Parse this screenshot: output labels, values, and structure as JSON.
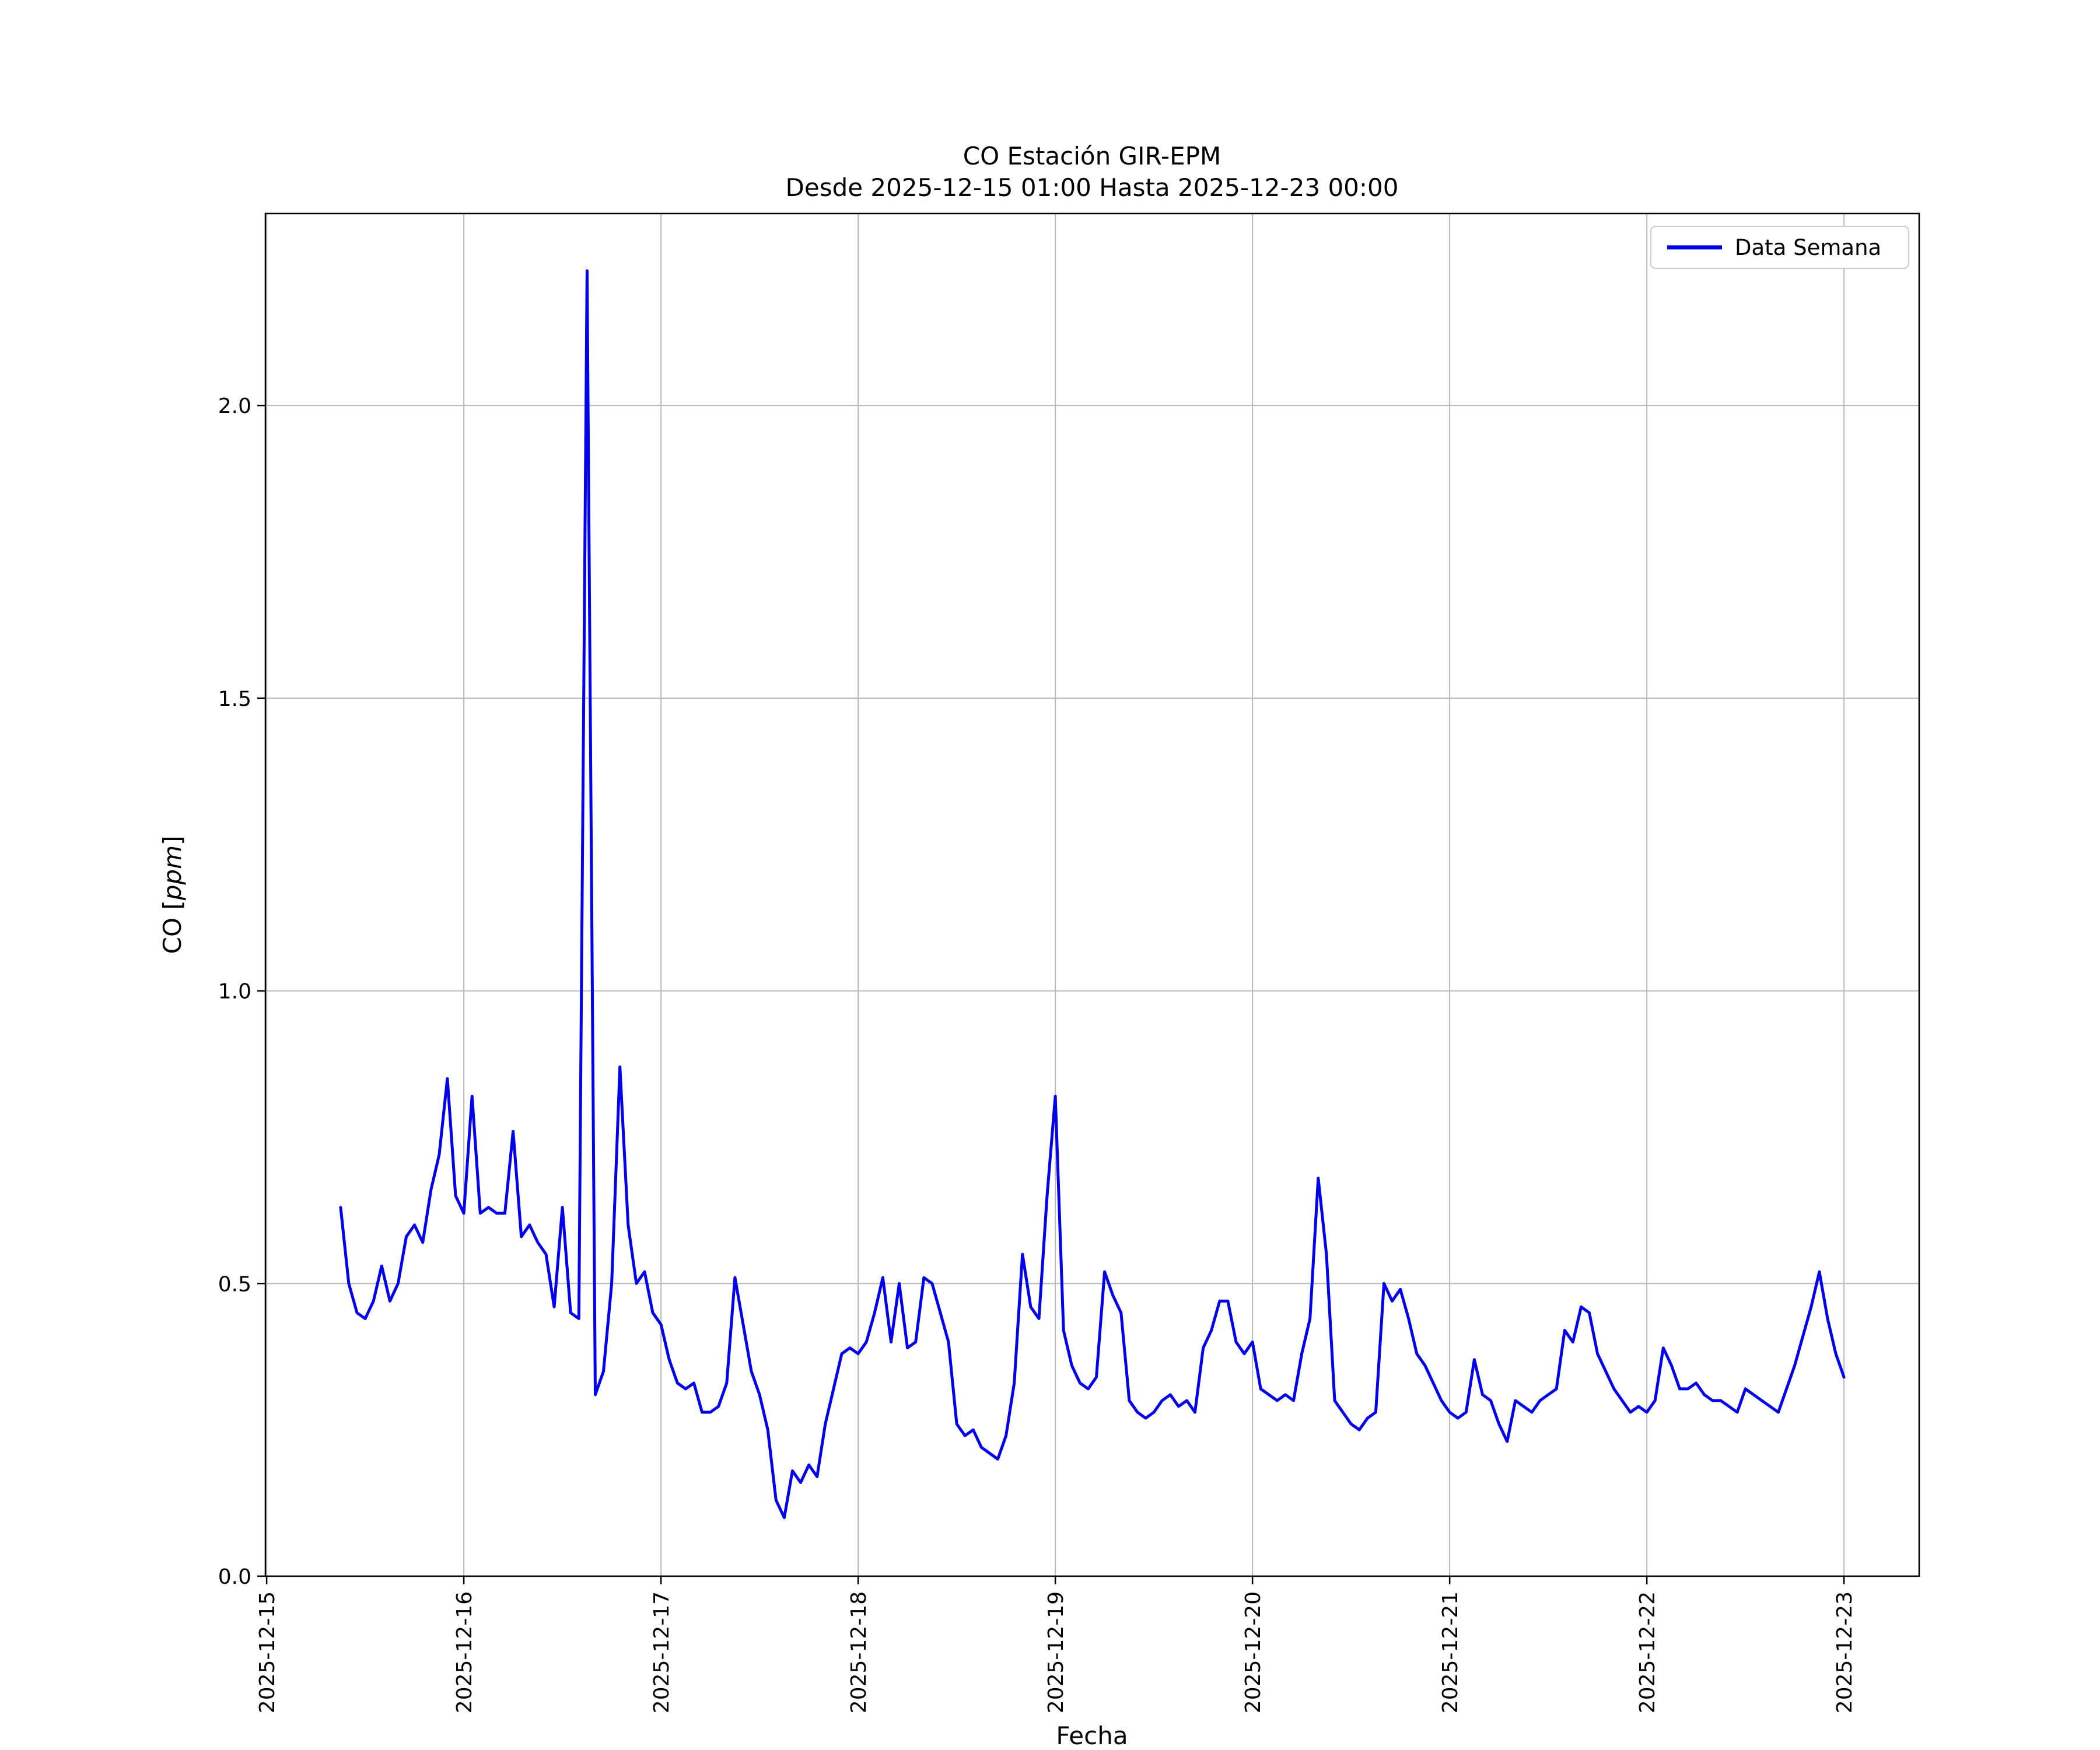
{
  "chart_data": {
    "type": "line",
    "title": "CO Estación GIR-EPM",
    "subtitle": "Desde 2025-12-15 01:00 Hasta 2025-12-23 00:00",
    "xlabel": "Fecha",
    "ylabel": "CO [ppm]",
    "ylabel_parts": [
      "CO [",
      "ppm",
      "]"
    ],
    "ylim": [
      0,
      2.328
    ],
    "yticks": [
      0.0,
      0.5,
      1.0,
      1.5,
      2.0
    ],
    "ytick_labels": [
      "0.0",
      "0.5",
      "1.0",
      "1.5",
      "2.0"
    ],
    "xticks_hours": [
      0,
      24,
      48,
      72,
      96,
      120,
      144,
      168,
      192
    ],
    "xtick_labels": [
      "2025-12-15",
      "2025-12-16",
      "2025-12-17",
      "2025-12-18",
      "2025-12-19",
      "2025-12-20",
      "2025-12-21",
      "2025-12-22",
      "2025-12-23"
    ],
    "x_range_hours": [
      -0.15,
      201.15
    ],
    "x_start_hour": 9,
    "grid": true,
    "legend_position": "upper right",
    "series": [
      {
        "name": "Data Semana",
        "color": "#0000ee",
        "start": "2025-12-15 09:00",
        "interval_hours": 1,
        "values": [
          0.63,
          0.5,
          0.45,
          0.44,
          0.47,
          0.53,
          0.47,
          0.5,
          0.58,
          0.6,
          0.57,
          0.66,
          0.72,
          0.85,
          0.65,
          0.62,
          0.82,
          0.62,
          0.63,
          0.62,
          0.62,
          0.76,
          0.58,
          0.6,
          0.57,
          0.55,
          0.46,
          0.63,
          0.45,
          0.44,
          2.23,
          0.31,
          0.35,
          0.5,
          0.87,
          0.6,
          0.5,
          0.52,
          0.45,
          0.43,
          0.37,
          0.33,
          0.32,
          0.33,
          0.28,
          0.28,
          0.29,
          0.33,
          0.51,
          0.43,
          0.35,
          0.31,
          0.25,
          0.13,
          0.1,
          0.18,
          0.16,
          0.19,
          0.17,
          0.26,
          0.32,
          0.38,
          0.39,
          0.38,
          0.4,
          0.45,
          0.51,
          0.4,
          0.5,
          0.39,
          0.4,
          0.51,
          0.5,
          0.45,
          0.4,
          0.26,
          0.24,
          0.25,
          0.22,
          0.21,
          0.2,
          0.24,
          0.33,
          0.55,
          0.46,
          0.44,
          0.65,
          0.82,
          0.42,
          0.36,
          0.33,
          0.32,
          0.34,
          0.52,
          0.48,
          0.45,
          0.3,
          0.28,
          0.27,
          0.28,
          0.3,
          0.31,
          0.29,
          0.3,
          0.28,
          0.39,
          0.42,
          0.47,
          0.47,
          0.4,
          0.38,
          0.4,
          0.32,
          0.31,
          0.3,
          0.31,
          0.3,
          0.38,
          0.44,
          0.68,
          0.55,
          0.3,
          0.28,
          0.26,
          0.25,
          0.27,
          0.28,
          0.5,
          0.47,
          0.49,
          0.44,
          0.38,
          0.36,
          0.33,
          0.3,
          0.28,
          0.27,
          0.28,
          0.37,
          0.31,
          0.3,
          0.26,
          0.23,
          0.3,
          0.29,
          0.28,
          0.3,
          0.31,
          0.32,
          0.42,
          0.4,
          0.46,
          0.45,
          0.38,
          0.35,
          0.32,
          0.3,
          0.28,
          0.29,
          0.28,
          0.3,
          0.39,
          0.36,
          0.32,
          0.32,
          0.33,
          0.31,
          0.3,
          0.3,
          0.29,
          0.28,
          0.32,
          0.31,
          0.3,
          0.29,
          0.28,
          0.32,
          0.36,
          0.41,
          0.46,
          0.52,
          0.44,
          0.38,
          0.34
        ]
      }
    ]
  }
}
